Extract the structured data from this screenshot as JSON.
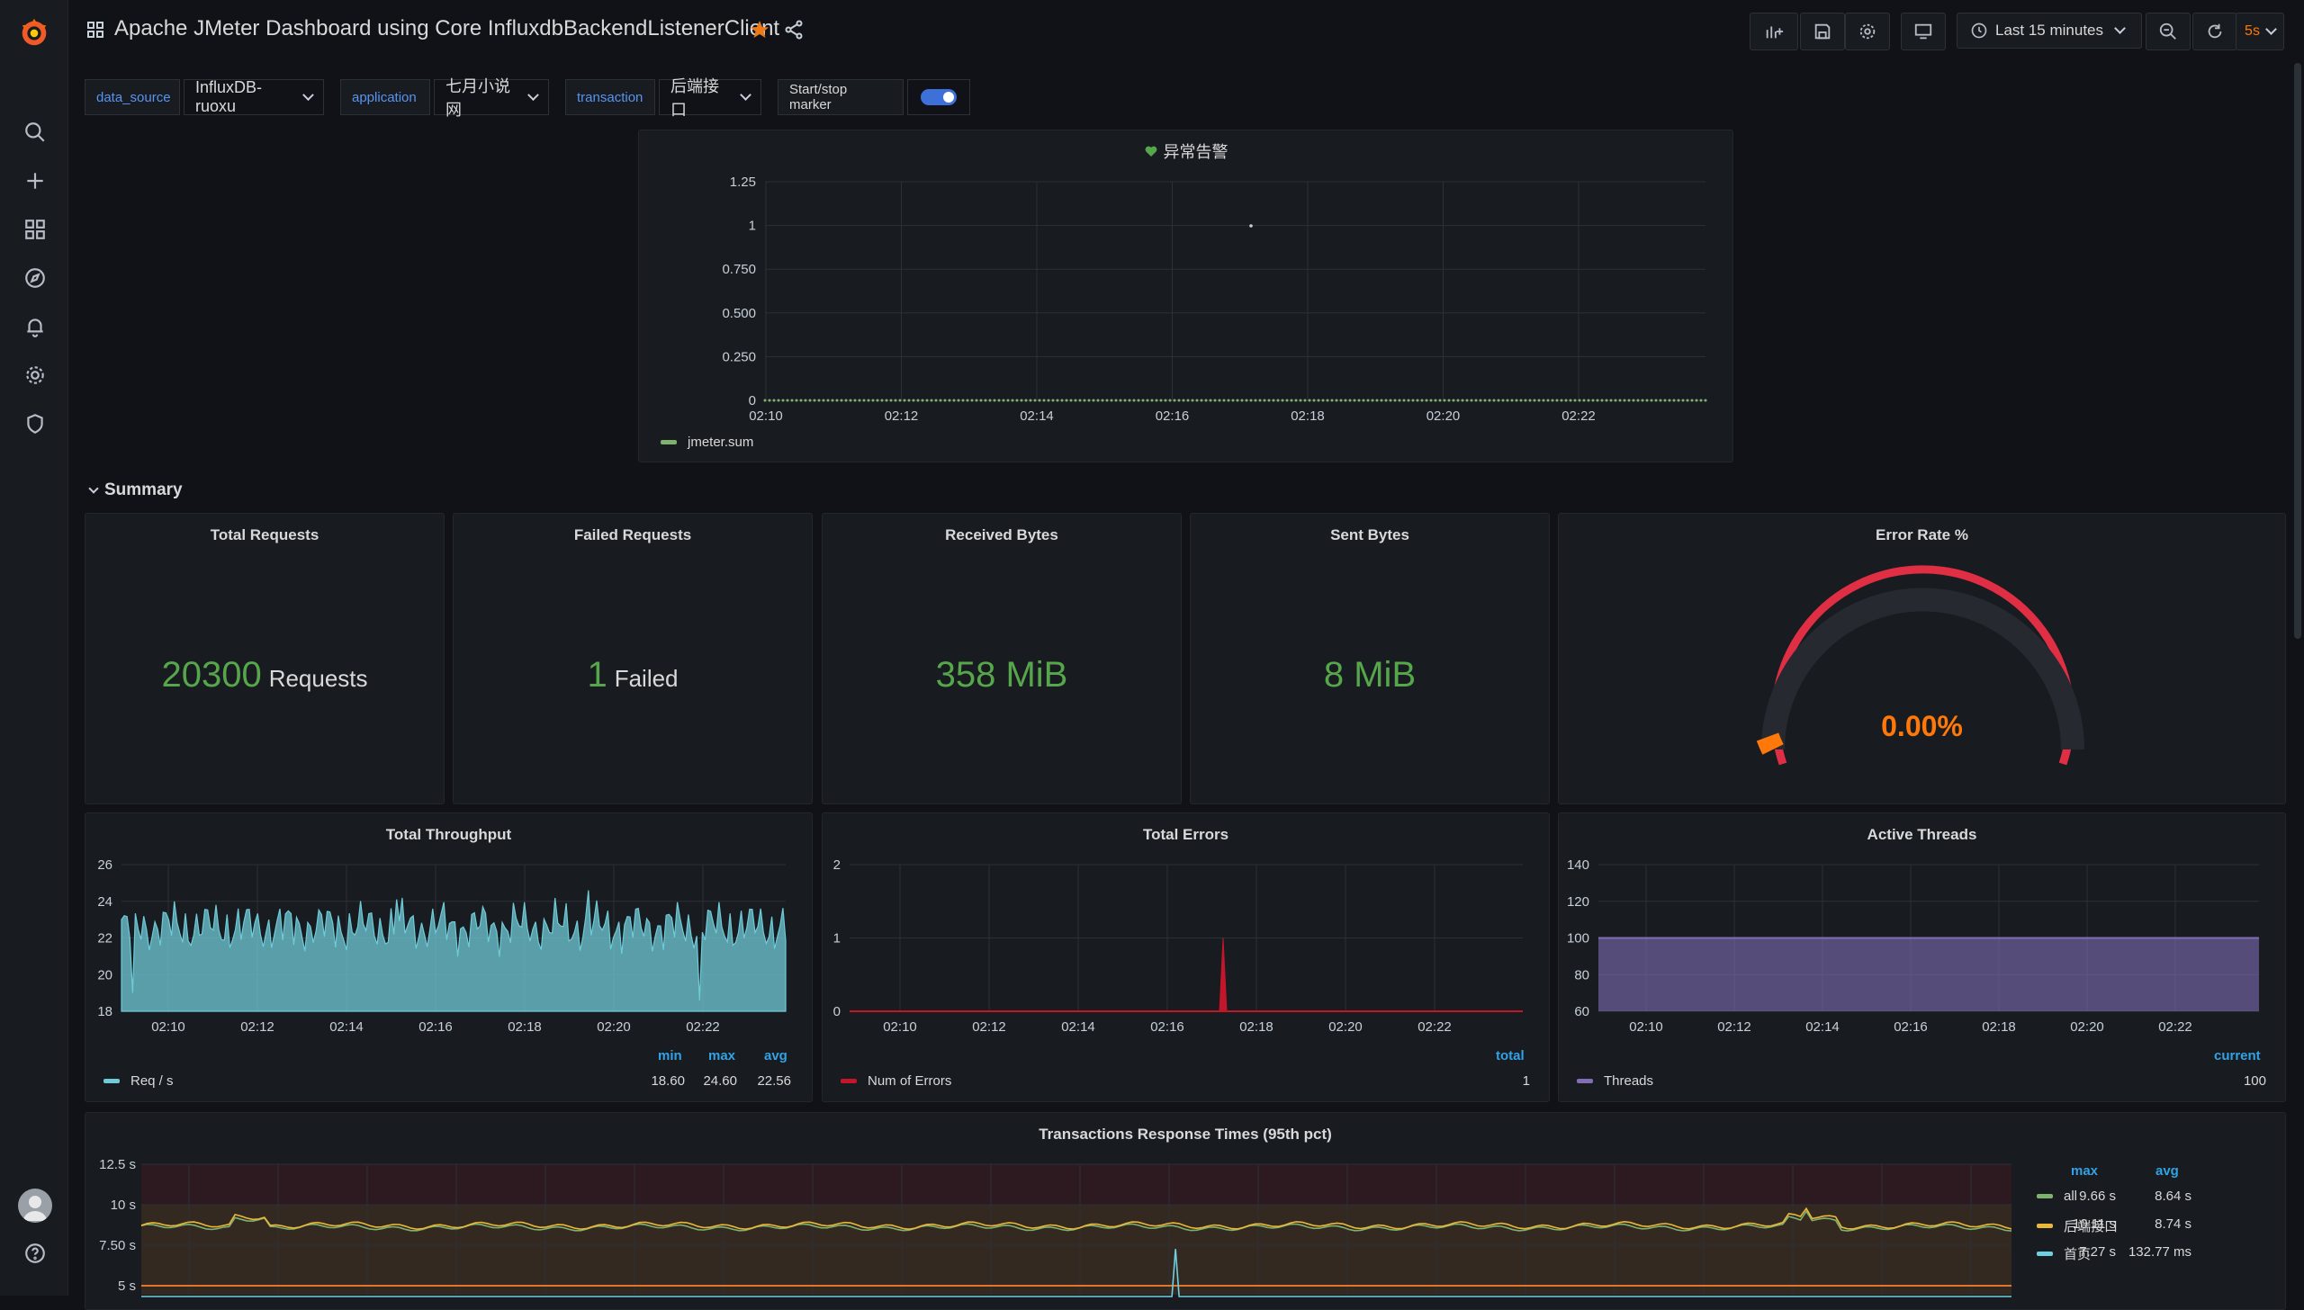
{
  "header": {
    "title": "Apache JMeter Dashboard using Core InfluxdbBackendListenerClient",
    "time_range": "Last 15 minutes",
    "refresh": "5s"
  },
  "variables": {
    "data_source_label": "data_source",
    "data_source_value": "InfluxDB-ruoxu",
    "application_label": "application",
    "application_value": "七月小说网",
    "transaction_label": "transaction",
    "transaction_value": "后端接口",
    "marker_label": "Start/stop marker",
    "marker_enabled": true
  },
  "alert_panel": {
    "title": "异常告警",
    "legend": "jmeter.sum",
    "y_ticks": [
      "1.25",
      "1",
      "0.750",
      "0.500",
      "0.250",
      "0"
    ],
    "x_ticks": [
      "02:10",
      "02:12",
      "02:14",
      "02:16",
      "02:18",
      "02:20",
      "02:22"
    ]
  },
  "section": {
    "summary": "Summary"
  },
  "stats": {
    "total_requests": {
      "title": "Total Requests",
      "value": "20300",
      "unit": "Requests"
    },
    "failed_requests": {
      "title": "Failed Requests",
      "value": "1",
      "unit": "Failed"
    },
    "received_bytes": {
      "title": "Received Bytes",
      "value": "358 MiB"
    },
    "sent_bytes": {
      "title": "Sent Bytes",
      "value": "8 MiB"
    },
    "error_rate": {
      "title": "Error Rate %",
      "value": "0.00%",
      "fraction": 0.0
    }
  },
  "throughput": {
    "title": "Total Throughput",
    "y_ticks": [
      "26",
      "24",
      "22",
      "20",
      "18"
    ],
    "x_ticks": [
      "02:10",
      "02:12",
      "02:14",
      "02:16",
      "02:18",
      "02:20",
      "02:22"
    ],
    "legend": {
      "name": "Req / s",
      "min_label": "min",
      "max_label": "max",
      "avg_label": "avg",
      "min": "18.60",
      "max": "24.60",
      "avg": "22.56"
    },
    "color": "#6fcbd8"
  },
  "errors": {
    "title": "Total Errors",
    "y_ticks": [
      "2",
      "1",
      "0"
    ],
    "x_ticks": [
      "02:10",
      "02:12",
      "02:14",
      "02:16",
      "02:18",
      "02:20",
      "02:22"
    ],
    "legend": {
      "name": "Num of Errors",
      "total_label": "total",
      "total": "1"
    },
    "color": "#c4162a"
  },
  "threads": {
    "title": "Active Threads",
    "y_ticks": [
      "140",
      "120",
      "100",
      "80",
      "60"
    ],
    "x_ticks": [
      "02:10",
      "02:12",
      "02:14",
      "02:16",
      "02:18",
      "02:20",
      "02:22"
    ],
    "legend": {
      "name": "Threads",
      "current_label": "current",
      "current": "100"
    },
    "color": "#806eb7"
  },
  "response_times": {
    "title": "Transactions Response Times (95th pct)",
    "y_ticks": [
      "12.5 s",
      "10 s",
      "7.50 s",
      "5 s"
    ],
    "legend_head": {
      "max": "max",
      "avg": "avg"
    },
    "series": [
      {
        "name": "all",
        "max": "9.66 s",
        "avg": "8.64 s",
        "color": "#7eb26d"
      },
      {
        "name": "后端接口",
        "max": "10.11 s",
        "avg": "8.74 s",
        "color": "#eab839"
      },
      {
        "name": "首页",
        "max": "7.27 s",
        "avg": "132.77 ms",
        "color": "#6ed0e0"
      }
    ]
  },
  "colors": {
    "accent": "#5794f2",
    "ok": "#56a64b",
    "gauge_red": "#e02f44",
    "gauge_value": "#ff780a"
  }
}
